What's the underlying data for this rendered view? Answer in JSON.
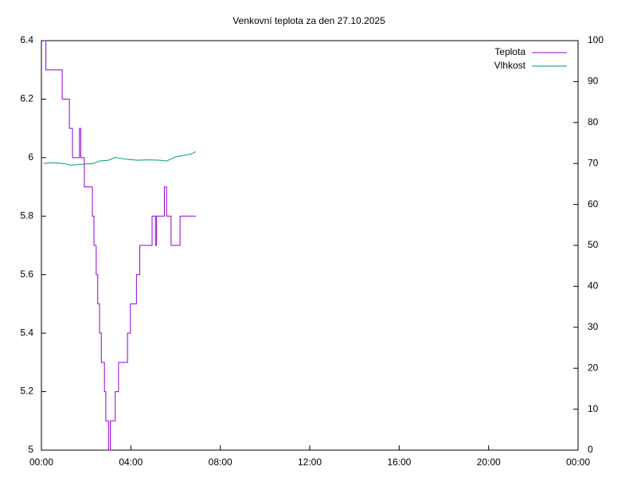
{
  "chart_data": {
    "type": "line",
    "title": "Venkovní teplota za den 27.10.2025",
    "xlim": [
      0,
      24
    ],
    "xticks": [
      {
        "value": 0,
        "label": "00:00"
      },
      {
        "value": 4,
        "label": "04:00"
      },
      {
        "value": 8,
        "label": "08:00"
      },
      {
        "value": 12,
        "label": "12:00"
      },
      {
        "value": 16,
        "label": "16:00"
      },
      {
        "value": 20,
        "label": "20:00"
      },
      {
        "value": 24,
        "label": "00:00"
      }
    ],
    "ylim": [
      5,
      6.4
    ],
    "yticks": [
      5,
      5.2,
      5.4,
      5.6,
      5.8,
      6,
      6.2,
      6.4
    ],
    "y2lim": [
      0,
      100
    ],
    "y2ticks": [
      0,
      10,
      20,
      30,
      40,
      50,
      60,
      70,
      80,
      90,
      100
    ],
    "legend": "top-right",
    "series": [
      {
        "name": "Teplota",
        "color": "#9400d3",
        "step": true,
        "x": [
          0.14,
          0.2,
          0.93,
          1.25,
          1.39,
          1.7,
          1.76,
          1.92,
          2.28,
          2.35,
          2.45,
          2.52,
          2.6,
          2.68,
          2.82,
          2.88,
          3.0,
          3.08,
          3.3,
          3.45,
          3.85,
          3.98,
          4.25,
          4.4,
          4.95,
          5.1,
          5.15,
          5.5,
          5.6,
          5.8,
          6.2,
          6.9
        ],
        "values": [
          6.4,
          6.3,
          6.2,
          6.1,
          6.0,
          6.1,
          6.0,
          5.9,
          5.8,
          5.7,
          5.6,
          5.5,
          5.4,
          5.3,
          5.2,
          5.1,
          5.0,
          5.1,
          5.2,
          5.3,
          5.4,
          5.5,
          5.6,
          5.7,
          5.8,
          5.7,
          5.8,
          5.9,
          5.8,
          5.7,
          5.8,
          5.8
        ]
      },
      {
        "name": "Vlhkost",
        "color": "#009e73",
        "axis": "y2",
        "x": [
          0.1,
          0.5,
          1.0,
          1.3,
          1.8,
          2.3,
          2.6,
          3.0,
          3.3,
          3.8,
          4.3,
          4.8,
          5.3,
          5.6,
          6.0,
          6.4,
          6.7,
          6.9
        ],
        "values": [
          70.0,
          70.2,
          70.0,
          69.6,
          69.8,
          70.0,
          70.6,
          70.8,
          71.5,
          71.0,
          70.8,
          70.9,
          70.8,
          70.6,
          71.6,
          72.0,
          72.3,
          72.9
        ]
      }
    ]
  }
}
